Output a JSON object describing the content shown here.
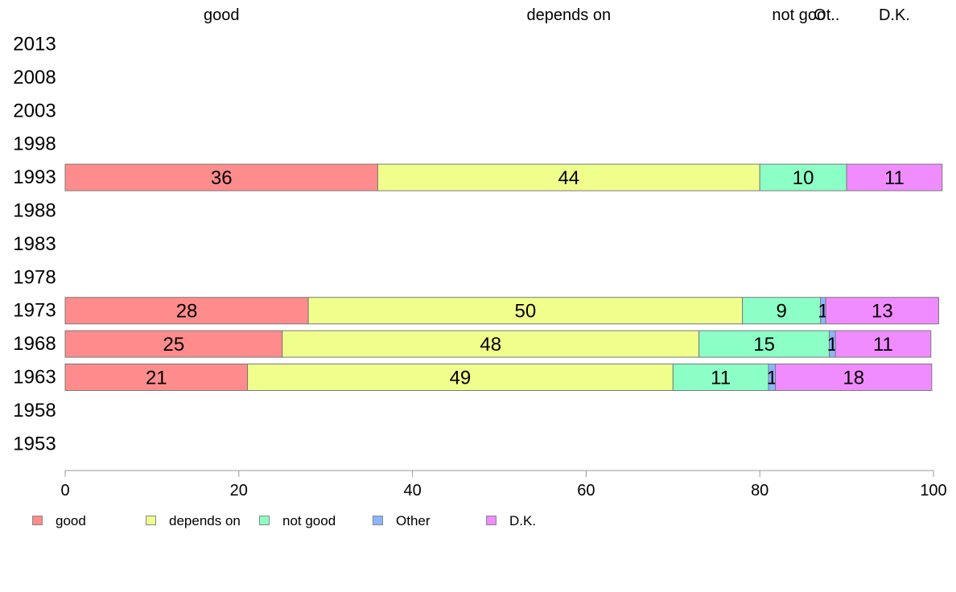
{
  "chart_data": {
    "type": "bar",
    "orientation": "horizontal",
    "stacked": true,
    "categories": [
      "2013",
      "2008",
      "2003",
      "1998",
      "1993",
      "1988",
      "1983",
      "1978",
      "1973",
      "1968",
      "1963",
      "1958",
      "1953"
    ],
    "series": [
      {
        "name": "good",
        "color": "#ff8c8c",
        "values": [
          null,
          null,
          null,
          null,
          36,
          null,
          null,
          null,
          28,
          25,
          21,
          null,
          null
        ],
        "labels": [
          "",
          "",
          "",
          "",
          "36",
          "",
          "",
          "",
          "28",
          "25",
          "21",
          "",
          ""
        ]
      },
      {
        "name": "depends on",
        "color": "#f0ff8c",
        "values": [
          null,
          null,
          null,
          null,
          44,
          null,
          null,
          null,
          50,
          48,
          49,
          null,
          null
        ],
        "labels": [
          "",
          "",
          "",
          "",
          "44",
          "",
          "",
          "",
          "50",
          "48",
          "49",
          "",
          ""
        ]
      },
      {
        "name": "not good",
        "color": "#8cffc6",
        "values": [
          null,
          null,
          null,
          null,
          10,
          null,
          null,
          null,
          9,
          15,
          11,
          null,
          null
        ],
        "labels": [
          "",
          "",
          "",
          "",
          "10",
          "",
          "",
          "",
          "9",
          "15",
          "11",
          "",
          ""
        ]
      },
      {
        "name": "Other",
        "color": "#8cb4ff",
        "values": [
          null,
          null,
          null,
          null,
          0,
          null,
          null,
          null,
          0.6,
          0.7,
          0.8,
          null,
          null
        ],
        "labels": [
          "",
          "",
          "",
          "",
          "",
          "",
          "",
          "",
          "1",
          "1",
          "1",
          "",
          ""
        ]
      },
      {
        "name": "D.K.",
        "color": "#f08cff",
        "values": [
          null,
          null,
          null,
          null,
          11,
          null,
          null,
          null,
          13,
          11,
          18,
          null,
          null
        ],
        "labels": [
          "",
          "",
          "",
          "",
          "11",
          "",
          "",
          "",
          "13",
          "11",
          "18",
          "",
          ""
        ]
      }
    ],
    "top_labels": [
      {
        "text": "good",
        "at": 18
      },
      {
        "text": "depends on",
        "at": 58
      },
      {
        "text": "not goo",
        "at": 84.5
      },
      {
        "text": "Ot..",
        "at": 87.7
      },
      {
        "text": "D.K.",
        "at": 95.5
      }
    ],
    "xlim": [
      0,
      100
    ],
    "xticks": [
      "0",
      "20",
      "40",
      "60",
      "80",
      "100"
    ],
    "grid": false,
    "legend_position": "bottom"
  },
  "legend": [
    {
      "label": "good",
      "color": "#ff8c8c"
    },
    {
      "label": "depends on",
      "color": "#f0ff8c"
    },
    {
      "label": "not good",
      "color": "#8cffc6"
    },
    {
      "label": "Other",
      "color": "#8cb4ff"
    },
    {
      "label": "D.K.",
      "color": "#f08cff"
    }
  ]
}
